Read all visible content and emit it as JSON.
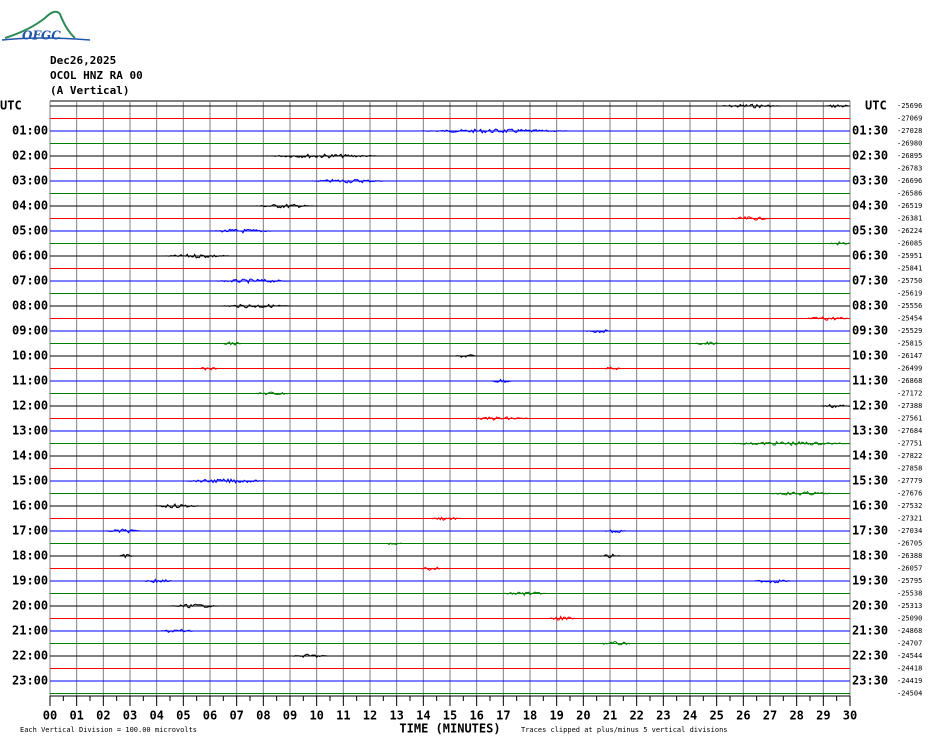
{
  "header": {
    "logo": "OFGC",
    "date": "Dec26,2025",
    "station": "OCOL HNZ RA 00",
    "component": "(A Vertical)"
  },
  "chart_data": {
    "type": "helicorder",
    "left_labels": [
      "UTC",
      "01:00",
      "02:00",
      "03:00",
      "04:00",
      "05:00",
      "06:00",
      "07:00",
      "08:00",
      "09:00",
      "10:00",
      "11:00",
      "12:00",
      "13:00",
      "14:00",
      "15:00",
      "16:00",
      "17:00",
      "18:00",
      "19:00",
      "20:00",
      "21:00",
      "22:00",
      "23:00"
    ],
    "right_labels": [
      "UTC",
      "01:30",
      "02:30",
      "03:30",
      "04:30",
      "05:30",
      "06:30",
      "07:30",
      "08:30",
      "09:30",
      "10:30",
      "11:30",
      "12:30",
      "13:30",
      "14:30",
      "15:30",
      "16:30",
      "17:30",
      "18:30",
      "19:30",
      "20:30",
      "21:30",
      "22:30",
      "23:30"
    ],
    "trace_offsets": [
      -25696,
      -27069,
      -27028,
      -26980,
      -26895,
      -26783,
      -26696,
      -26586,
      -26519,
      -26381,
      -26224,
      -26085,
      -25951,
      -25841,
      -25750,
      -25619,
      -25556,
      -25454,
      -25529,
      -25815,
      -26147,
      -26499,
      -26868,
      -27172,
      -27388,
      -27561,
      -27684,
      -27751,
      -27822,
      -27858,
      -27779,
      -27676,
      -27532,
      -27321,
      -27034,
      -26705,
      -26388,
      -26057,
      -25795,
      -25538,
      -25313,
      -25090,
      -24868,
      -24707,
      -24544,
      -24418,
      -24419,
      -24504
    ],
    "trace_colors": [
      "#000000",
      "#ff0000",
      "#0000ff",
      "#008000"
    ],
    "xlim": [
      0,
      30
    ],
    "xticks": [
      {
        "value": 0,
        "label": "00"
      },
      {
        "value": 1,
        "label": "01"
      },
      {
        "value": 2,
        "label": "02"
      },
      {
        "value": 3,
        "label": "03"
      },
      {
        "value": 4,
        "label": "04"
      },
      {
        "value": 5,
        "label": "05"
      },
      {
        "value": 6,
        "label": "06"
      },
      {
        "value": 7,
        "label": "07"
      },
      {
        "value": 8,
        "label": "08"
      },
      {
        "value": 9,
        "label": "09"
      },
      10,
      11,
      12,
      13,
      14,
      15,
      16,
      17,
      18,
      19,
      20,
      21,
      22,
      23,
      24,
      25,
      26,
      27,
      28,
      29,
      30
    ],
    "xlabel": "TIME (MINUTES)",
    "events": [
      {
        "trace": 0,
        "start": 25.1,
        "end": 27.4
      },
      {
        "trace": 0,
        "start": 29.1,
        "end": 30
      },
      {
        "trace": 2,
        "start": 13.9,
        "end": 19.5
      },
      {
        "trace": 4,
        "start": 8.1,
        "end": 12.4
      },
      {
        "trace": 6,
        "start": 9.8,
        "end": 12.6
      },
      {
        "trace": 8,
        "start": 7.7,
        "end": 9.9
      },
      {
        "trace": 9,
        "start": 25.5,
        "end": 27
      },
      {
        "trace": 10,
        "start": 6,
        "end": 8.4
      },
      {
        "trace": 11,
        "start": 29.2,
        "end": 30
      },
      {
        "trace": 12,
        "start": 4.3,
        "end": 6.8
      },
      {
        "trace": 14,
        "start": 6.2,
        "end": 9
      },
      {
        "trace": 16,
        "start": 6.4,
        "end": 9
      },
      {
        "trace": 17,
        "start": 28.3,
        "end": 30
      },
      {
        "trace": 18,
        "start": 20.1,
        "end": 21
      },
      {
        "trace": 19,
        "start": 6.5,
        "end": 7.2
      },
      {
        "trace": 19,
        "start": 24.2,
        "end": 25.1
      },
      {
        "trace": 20,
        "start": 15.2,
        "end": 16
      },
      {
        "trace": 21,
        "start": 5.6,
        "end": 6.3
      },
      {
        "trace": 21,
        "start": 20.8,
        "end": 21.4
      },
      {
        "trace": 22,
        "start": 16.5,
        "end": 17.3
      },
      {
        "trace": 23,
        "start": 7.7,
        "end": 9
      },
      {
        "trace": 24,
        "start": 28.9,
        "end": 30
      },
      {
        "trace": 25,
        "start": 15.9,
        "end": 18
      },
      {
        "trace": 27,
        "start": 25.5,
        "end": 30
      },
      {
        "trace": 30,
        "start": 5.1,
        "end": 8.1
      },
      {
        "trace": 31,
        "start": 27,
        "end": 29.3
      },
      {
        "trace": 32,
        "start": 3.9,
        "end": 5.6
      },
      {
        "trace": 33,
        "start": 14.3,
        "end": 15.4
      },
      {
        "trace": 34,
        "start": 2.1,
        "end": 3.4
      },
      {
        "trace": 34,
        "start": 20.8,
        "end": 21.6
      },
      {
        "trace": 35,
        "start": 12.6,
        "end": 13.2
      },
      {
        "trace": 36,
        "start": 2.6,
        "end": 3.1
      },
      {
        "trace": 36,
        "start": 20.6,
        "end": 21.4
      },
      {
        "trace": 37,
        "start": 13.9,
        "end": 14.7
      },
      {
        "trace": 38,
        "start": 3.5,
        "end": 4.6
      },
      {
        "trace": 38,
        "start": 26.4,
        "end": 27.8
      },
      {
        "trace": 39,
        "start": 17,
        "end": 18.6
      },
      {
        "trace": 40,
        "start": 4.5,
        "end": 6.3
      },
      {
        "trace": 41,
        "start": 18.7,
        "end": 19.7
      },
      {
        "trace": 42,
        "start": 4.1,
        "end": 5.4
      },
      {
        "trace": 43,
        "start": 20.6,
        "end": 21.8
      },
      {
        "trace": 44,
        "start": 9.1,
        "end": 10.4
      }
    ]
  },
  "footer": {
    "scale": "Each Vertical Division =  100.00 microvolts",
    "clip": "Traces clipped at plus/minus 5 vertical divisions"
  }
}
